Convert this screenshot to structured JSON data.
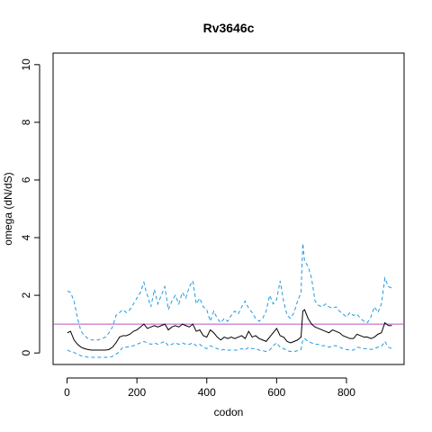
{
  "chart_data": {
    "type": "line",
    "title": "Rv3646c",
    "xlabel": "codon",
    "ylabel": "omega (dN/dS)",
    "xlim": [
      -40,
      965
    ],
    "ylim": [
      -0.4,
      10.4
    ],
    "x_ticks": [
      0,
      200,
      400,
      600,
      800
    ],
    "y_ticks": [
      0,
      2,
      4,
      6,
      8,
      10
    ],
    "reference_line": {
      "y": 1,
      "color": "#c050c0"
    },
    "series": [
      {
        "role": "upper",
        "color": "#1e9be0",
        "dash": "dashed",
        "x": [
          1,
          10,
          20,
          30,
          40,
          50,
          60,
          70,
          80,
          90,
          100,
          110,
          120,
          130,
          140,
          150,
          160,
          170,
          180,
          190,
          200,
          210,
          220,
          225,
          230,
          240,
          250,
          260,
          270,
          280,
          290,
          300,
          310,
          320,
          330,
          340,
          350,
          360,
          370,
          380,
          390,
          400,
          410,
          420,
          430,
          440,
          450,
          460,
          470,
          480,
          490,
          500,
          510,
          520,
          530,
          540,
          550,
          560,
          570,
          580,
          590,
          600,
          610,
          620,
          630,
          640,
          650,
          660,
          670,
          675,
          680,
          690,
          700,
          710,
          720,
          730,
          740,
          750,
          760,
          770,
          780,
          790,
          800,
          810,
          820,
          830,
          840,
          850,
          860,
          870,
          880,
          890,
          900,
          910,
          920,
          930
        ],
        "y": [
          2.15,
          2.1,
          1.8,
          1.2,
          0.75,
          0.6,
          0.5,
          0.45,
          0.45,
          0.45,
          0.5,
          0.55,
          0.7,
          0.9,
          1.3,
          1.4,
          1.5,
          1.4,
          1.5,
          1.7,
          1.9,
          2.1,
          2.45,
          2.2,
          2.0,
          1.6,
          2.2,
          1.7,
          2.0,
          2.3,
          1.5,
          1.8,
          2.0,
          1.7,
          2.1,
          1.9,
          2.3,
          2.5,
          1.7,
          1.9,
          1.6,
          1.5,
          1.1,
          1.45,
          1.2,
          1.05,
          1.2,
          1.1,
          1.3,
          1.45,
          1.35,
          1.6,
          1.8,
          1.55,
          1.4,
          1.2,
          1.1,
          1.2,
          1.45,
          2.0,
          1.7,
          1.85,
          2.5,
          1.8,
          1.3,
          1.2,
          1.4,
          1.8,
          2.1,
          3.8,
          3.2,
          3.0,
          2.6,
          1.8,
          1.65,
          1.6,
          1.7,
          1.6,
          1.55,
          1.6,
          1.45,
          1.35,
          1.25,
          1.4,
          1.3,
          1.35,
          1.2,
          1.1,
          1.05,
          1.25,
          1.6,
          1.4,
          1.7,
          2.6,
          2.3,
          2.25
        ]
      },
      {
        "role": "estimate",
        "color": "#000000",
        "dash": "solid",
        "x": [
          1,
          10,
          20,
          30,
          40,
          50,
          60,
          70,
          80,
          90,
          100,
          110,
          120,
          130,
          140,
          150,
          160,
          170,
          180,
          190,
          200,
          210,
          220,
          230,
          240,
          250,
          260,
          270,
          280,
          290,
          300,
          310,
          320,
          330,
          340,
          350,
          360,
          370,
          380,
          390,
          400,
          410,
          420,
          430,
          440,
          450,
          460,
          470,
          480,
          490,
          500,
          510,
          520,
          530,
          540,
          550,
          560,
          570,
          580,
          590,
          600,
          610,
          620,
          630,
          640,
          650,
          660,
          670,
          675,
          680,
          690,
          700,
          710,
          720,
          730,
          740,
          750,
          760,
          770,
          780,
          790,
          800,
          810,
          820,
          830,
          840,
          850,
          860,
          870,
          880,
          890,
          900,
          910,
          920,
          930
        ],
        "y": [
          0.7,
          0.75,
          0.45,
          0.3,
          0.2,
          0.15,
          0.12,
          0.1,
          0.1,
          0.1,
          0.1,
          0.1,
          0.12,
          0.2,
          0.35,
          0.55,
          0.6,
          0.6,
          0.65,
          0.75,
          0.8,
          0.9,
          1.0,
          0.85,
          0.9,
          0.95,
          0.9,
          0.95,
          1.0,
          0.8,
          0.9,
          0.95,
          0.9,
          1.0,
          0.95,
          0.9,
          1.0,
          0.75,
          0.8,
          0.6,
          0.55,
          0.8,
          0.7,
          0.55,
          0.45,
          0.55,
          0.5,
          0.55,
          0.5,
          0.55,
          0.6,
          0.5,
          0.75,
          0.55,
          0.6,
          0.5,
          0.45,
          0.4,
          0.55,
          0.7,
          0.85,
          0.6,
          0.55,
          0.4,
          0.35,
          0.4,
          0.45,
          0.55,
          1.45,
          1.5,
          1.2,
          1.0,
          0.9,
          0.85,
          0.8,
          0.75,
          0.7,
          0.8,
          0.75,
          0.7,
          0.6,
          0.55,
          0.5,
          0.5,
          0.65,
          0.6,
          0.55,
          0.55,
          0.5,
          0.55,
          0.65,
          0.7,
          1.05,
          0.95,
          0.95
        ]
      },
      {
        "role": "lower",
        "color": "#1e9be0",
        "dash": "dashed",
        "x": [
          1,
          10,
          20,
          30,
          40,
          50,
          60,
          70,
          80,
          90,
          100,
          110,
          120,
          130,
          140,
          150,
          160,
          170,
          180,
          190,
          200,
          210,
          220,
          230,
          240,
          250,
          260,
          270,
          280,
          290,
          300,
          310,
          320,
          330,
          340,
          350,
          360,
          370,
          380,
          390,
          400,
          410,
          420,
          430,
          440,
          450,
          460,
          470,
          480,
          490,
          500,
          510,
          520,
          530,
          540,
          550,
          560,
          570,
          580,
          590,
          600,
          610,
          620,
          630,
          640,
          650,
          660,
          670,
          675,
          680,
          690,
          700,
          710,
          720,
          730,
          740,
          750,
          760,
          770,
          780,
          790,
          800,
          810,
          820,
          830,
          840,
          850,
          860,
          870,
          880,
          890,
          900,
          910,
          920,
          930
        ],
        "y": [
          0.1,
          0.05,
          0.02,
          -0.05,
          -0.1,
          -0.12,
          -0.15,
          -0.15,
          -0.15,
          -0.15,
          -0.15,
          -0.15,
          -0.15,
          -0.12,
          -0.05,
          0.05,
          0.2,
          0.2,
          0.22,
          0.25,
          0.3,
          0.35,
          0.4,
          0.35,
          0.3,
          0.35,
          0.3,
          0.35,
          0.4,
          0.25,
          0.3,
          0.35,
          0.3,
          0.35,
          0.3,
          0.3,
          0.35,
          0.25,
          0.3,
          0.2,
          0.15,
          0.25,
          0.2,
          0.15,
          0.1,
          0.12,
          0.1,
          0.1,
          0.1,
          0.1,
          0.15,
          0.1,
          0.2,
          0.15,
          0.15,
          0.1,
          0.08,
          0.05,
          0.1,
          0.25,
          0.35,
          0.2,
          0.15,
          0.08,
          0.05,
          0.05,
          0.08,
          0.12,
          0.45,
          0.5,
          0.4,
          0.35,
          0.3,
          0.3,
          0.25,
          0.25,
          0.2,
          0.25,
          0.25,
          0.2,
          0.15,
          0.12,
          0.1,
          0.1,
          0.2,
          0.18,
          0.15,
          0.15,
          0.12,
          0.15,
          0.2,
          0.22,
          0.4,
          0.2,
          0.15
        ]
      }
    ]
  }
}
